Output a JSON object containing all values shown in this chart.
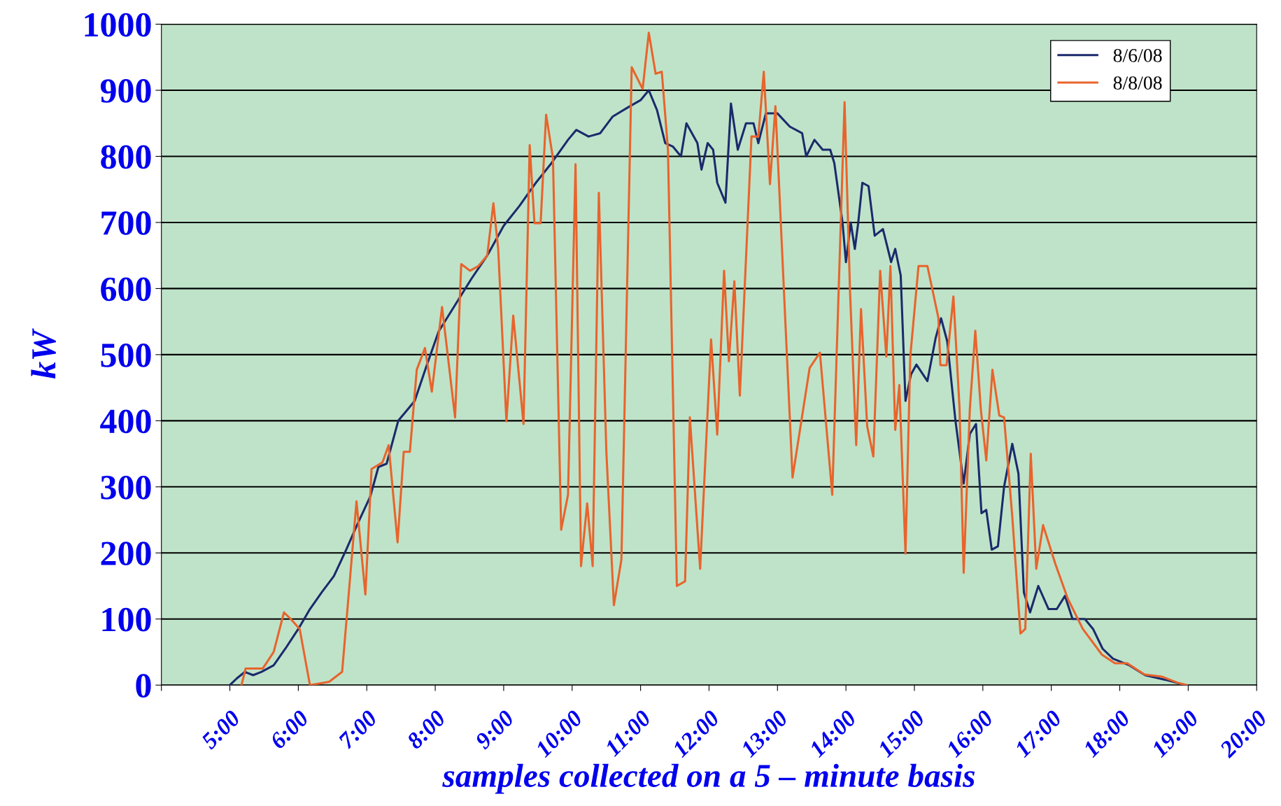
{
  "chart_data": {
    "type": "line",
    "xlabel": "samples collected on a 5 – minute basis",
    "ylabel": "kW",
    "xlim": [
      4,
      20
    ],
    "xticks": [
      {
        "value": 4,
        "label": null
      },
      {
        "value": 5,
        "label": "5:00"
      },
      {
        "value": 6,
        "label": "6:00"
      },
      {
        "value": 7,
        "label": "7:00"
      },
      {
        "value": 8,
        "label": "8:00"
      },
      {
        "value": 9,
        "label": "9:00"
      },
      {
        "value": 10,
        "label": "10:00"
      },
      {
        "value": 11,
        "label": "11:00"
      },
      {
        "value": 12,
        "label": "12:00"
      },
      {
        "value": 13,
        "label": "13:00"
      },
      {
        "value": 14,
        "label": "14:00"
      },
      {
        "value": 15,
        "label": "15:00"
      },
      {
        "value": 16,
        "label": "16:00"
      },
      {
        "value": 17,
        "label": "17:00"
      },
      {
        "value": 18,
        "label": "18:00"
      },
      {
        "value": 19,
        "label": "19:00"
      },
      {
        "value": 20,
        "label": "20:00"
      }
    ],
    "ylim": [
      0,
      1000
    ],
    "yticks": [
      0,
      100,
      200,
      300,
      400,
      500,
      600,
      700,
      800,
      900,
      1000
    ],
    "grid": "y",
    "legend": "top right",
    "marker": "none",
    "line_style": "solid",
    "series": [
      {
        "name": "8/6/08",
        "color": "#1b2a6b",
        "x": [
          5.0,
          5.1,
          5.22,
          5.34,
          5.46,
          5.64,
          5.81,
          6.0,
          6.17,
          6.34,
          6.52,
          6.7,
          6.87,
          7.05,
          7.17,
          7.29,
          7.46,
          7.58,
          7.7,
          7.88,
          8.05,
          8.29,
          8.53,
          8.76,
          9.0,
          9.23,
          9.47,
          9.7,
          9.94,
          10.06,
          10.24,
          10.41,
          10.59,
          10.83,
          11.0,
          11.12,
          11.24,
          11.36,
          11.47,
          11.59,
          11.67,
          11.83,
          11.89,
          11.98,
          12.06,
          12.12,
          12.24,
          12.32,
          12.42,
          12.54,
          12.65,
          12.72,
          12.83,
          13.0,
          13.18,
          13.36,
          13.42,
          13.54,
          13.66,
          13.77,
          13.83,
          13.95,
          14.0,
          14.07,
          14.13,
          14.18,
          14.24,
          14.33,
          14.42,
          14.54,
          14.66,
          14.72,
          14.8,
          14.87,
          14.95,
          15.03,
          15.19,
          15.31,
          15.39,
          15.48,
          15.6,
          15.72,
          15.81,
          15.9,
          15.98,
          16.05,
          16.13,
          16.22,
          16.31,
          16.43,
          16.52,
          16.6,
          16.69,
          16.81,
          16.96,
          17.08,
          17.2,
          17.31,
          17.49,
          17.61,
          17.75,
          17.9,
          18.14,
          18.37,
          18.67,
          18.96
        ],
        "values": [
          0,
          10,
          20,
          15,
          20,
          30,
          55,
          85,
          115,
          140,
          165,
          205,
          245,
          285,
          330,
          335,
          400,
          415,
          430,
          485,
          535,
          575,
          615,
          650,
          695,
          725,
          760,
          790,
          825,
          840,
          830,
          835,
          860,
          875,
          885,
          900,
          870,
          820,
          815,
          800,
          850,
          820,
          780,
          820,
          810,
          760,
          730,
          880,
          810,
          850,
          850,
          820,
          865,
          865,
          845,
          835,
          800,
          825,
          810,
          810,
          790,
          700,
          640,
          700,
          660,
          700,
          760,
          755,
          680,
          690,
          640,
          660,
          620,
          430,
          470,
          485,
          460,
          525,
          555,
          520,
          400,
          305,
          380,
          395,
          260,
          265,
          205,
          210,
          300,
          365,
          320,
          140,
          110,
          150,
          115,
          115,
          135,
          100,
          100,
          85,
          55,
          40,
          30,
          15,
          8,
          0
        ]
      },
      {
        "name": "8/8/08",
        "color": "#e8642c",
        "x": [
          5.17,
          5.23,
          5.48,
          5.64,
          5.79,
          5.89,
          6.02,
          6.17,
          6.45,
          6.64,
          6.73,
          6.85,
          6.98,
          7.07,
          7.23,
          7.32,
          7.45,
          7.54,
          7.63,
          7.73,
          7.85,
          7.95,
          8.1,
          8.29,
          8.38,
          8.51,
          8.63,
          8.76,
          8.85,
          8.92,
          9.04,
          9.14,
          9.29,
          9.38,
          9.45,
          9.54,
          9.62,
          9.72,
          9.84,
          9.94,
          10.05,
          10.13,
          10.22,
          10.3,
          10.39,
          10.5,
          10.61,
          10.72,
          10.87,
          11.03,
          11.12,
          11.22,
          11.31,
          11.4,
          11.53,
          11.65,
          11.72,
          11.87,
          12.03,
          12.12,
          12.22,
          12.29,
          12.37,
          12.45,
          12.62,
          12.72,
          12.8,
          12.89,
          12.97,
          13.22,
          13.47,
          13.62,
          13.8,
          13.98,
          14.06,
          14.15,
          14.22,
          14.31,
          14.4,
          14.5,
          14.59,
          14.65,
          14.72,
          14.78,
          14.87,
          14.94,
          15.06,
          15.19,
          15.35,
          15.38,
          15.47,
          15.57,
          15.66,
          15.72,
          15.81,
          15.89,
          15.97,
          16.05,
          16.14,
          16.24,
          16.31,
          16.43,
          16.55,
          16.62,
          16.7,
          16.78,
          16.88,
          17.06,
          17.24,
          17.46,
          17.74,
          17.93,
          18.11,
          18.36,
          18.61,
          18.86,
          18.98
        ],
        "values": [
          0,
          25,
          25,
          50,
          110,
          100,
          85,
          0,
          5,
          20,
          130,
          278,
          137,
          327,
          337,
          363,
          216,
          353,
          353,
          477,
          510,
          444,
          572,
          405,
          637,
          627,
          634,
          650,
          729,
          660,
          399,
          559,
          395,
          817,
          699,
          699,
          863,
          797,
          235,
          288,
          788,
          180,
          275,
          180,
          745,
          353,
          121,
          190,
          935,
          902,
          987,
          925,
          928,
          810,
          150,
          157,
          405,
          176,
          523,
          379,
          627,
          490,
          611,
          438,
          830,
          830,
          928,
          758,
          876,
          314,
          480,
          503,
          288,
          882,
          595,
          363,
          569,
          392,
          346,
          627,
          497,
          634,
          386,
          454,
          199,
          497,
          634,
          634,
          556,
          484,
          484,
          588,
          418,
          170,
          418,
          536,
          418,
          340,
          477,
          408,
          405,
          255,
          78,
          85,
          350,
          176,
          242,
          183,
          131,
          85,
          46,
          33,
          33,
          16,
          13,
          3,
          0
        ]
      }
    ]
  }
}
